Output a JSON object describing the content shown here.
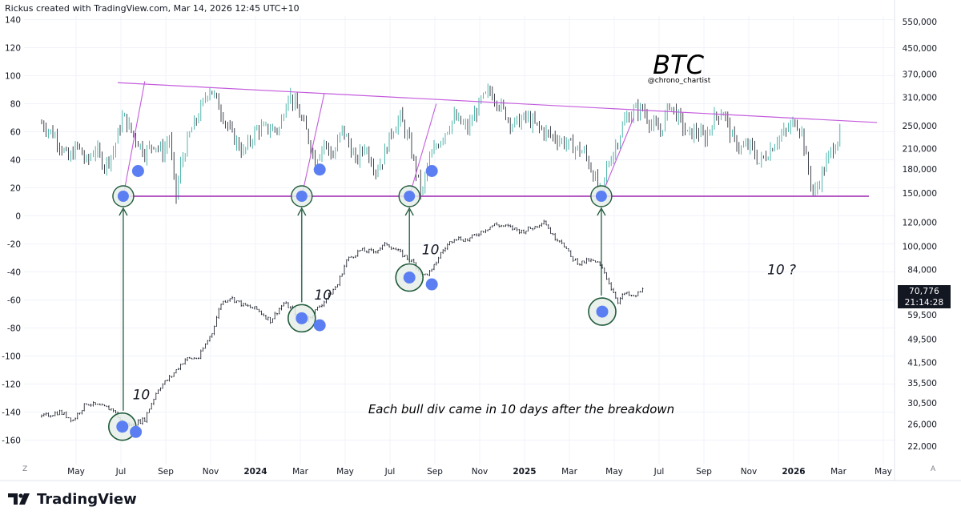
{
  "header": {
    "attribution": "Rickus created with TradingView.com, Mar 14, 2026 12:45 UTC+10"
  },
  "brand": {
    "name": "TradingView",
    "logo_icon": "tradingview-logo-icon"
  },
  "colors": {
    "bg": "#ffffff",
    "grid": "#f0f3fa",
    "candle_up": "#26a69a",
    "candle_down": "#131722",
    "trendline": "#c45cdc",
    "support": "#9c27b0",
    "marker": "#5b7ff2",
    "arrow": "#1f5a3a"
  },
  "price_tag": {
    "price": "70,776",
    "countdown": "21:14:28"
  },
  "corner_labels": {
    "left": "Z",
    "right": "A"
  },
  "chart_data": [
    {
      "type": "line",
      "name": "oscillator",
      "title": "BTC",
      "subtitle": "@chrono_chartist",
      "yaxis_side": "left",
      "yticks": [
        140,
        120,
        100,
        80,
        60,
        40,
        20,
        0,
        -20,
        -40,
        -60,
        -80,
        -100,
        -120,
        -140,
        -160
      ],
      "key_points": [
        {
          "t": 0,
          "v": 66
        },
        {
          "t": 3,
          "v": 57
        },
        {
          "t": 6,
          "v": 40
        },
        {
          "t": 8,
          "v": 50
        },
        {
          "t": 10,
          "v": 38
        },
        {
          "t": 12,
          "v": 48
        },
        {
          "t": 14,
          "v": 36
        },
        {
          "t": 16,
          "v": 46
        },
        {
          "t": 18.2,
          "v": 72
        },
        {
          "t": 19,
          "v": 66
        },
        {
          "t": 21,
          "v": 55
        },
        {
          "t": 23,
          "v": 45
        },
        {
          "t": 25,
          "v": 52
        },
        {
          "t": 27,
          "v": 45
        },
        {
          "t": 28.5,
          "v": 56
        },
        {
          "t": 29.3,
          "v": 30
        },
        {
          "t": 30,
          "v": 14
        },
        {
          "t": 31,
          "v": 36
        },
        {
          "t": 33,
          "v": 58
        },
        {
          "t": 35,
          "v": 72
        },
        {
          "t": 37.4,
          "v": 92
        },
        {
          "t": 39,
          "v": 82
        },
        {
          "t": 42,
          "v": 60
        },
        {
          "t": 45,
          "v": 45
        },
        {
          "t": 48,
          "v": 62
        },
        {
          "t": 50,
          "v": 62
        },
        {
          "t": 53,
          "v": 62
        },
        {
          "t": 55,
          "v": 88
        },
        {
          "t": 57,
          "v": 76
        },
        {
          "t": 59,
          "v": 60
        },
        {
          "t": 61,
          "v": 40
        },
        {
          "t": 63,
          "v": 52
        },
        {
          "t": 65,
          "v": 42
        },
        {
          "t": 67,
          "v": 62
        },
        {
          "t": 69,
          "v": 48
        },
        {
          "t": 70,
          "v": 38
        },
        {
          "t": 72,
          "v": 50
        },
        {
          "t": 74.5,
          "v": 33
        },
        {
          "t": 76,
          "v": 40
        },
        {
          "t": 78,
          "v": 60
        },
        {
          "t": 80,
          "v": 70
        },
        {
          "t": 82,
          "v": 52
        },
        {
          "t": 84.8,
          "v": 14
        },
        {
          "t": 86,
          "v": 36
        },
        {
          "t": 88,
          "v": 50
        },
        {
          "t": 90,
          "v": 60
        },
        {
          "t": 92,
          "v": 70
        },
        {
          "t": 95,
          "v": 62
        },
        {
          "t": 98,
          "v": 82
        },
        {
          "t": 100,
          "v": 89
        },
        {
          "t": 102,
          "v": 80
        },
        {
          "t": 105,
          "v": 65
        },
        {
          "t": 108,
          "v": 70
        },
        {
          "t": 112,
          "v": 60
        },
        {
          "t": 115,
          "v": 55
        },
        {
          "t": 118,
          "v": 50
        },
        {
          "t": 121,
          "v": 45
        },
        {
          "t": 123,
          "v": 30
        },
        {
          "t": 124.8,
          "v": 14
        },
        {
          "t": 126,
          "v": 34
        },
        {
          "t": 128,
          "v": 50
        },
        {
          "t": 130,
          "v": 68
        },
        {
          "t": 132,
          "v": 75
        },
        {
          "t": 134,
          "v": 76
        },
        {
          "t": 136,
          "v": 65
        },
        {
          "t": 138,
          "v": 60
        },
        {
          "t": 140,
          "v": 80
        },
        {
          "t": 142,
          "v": 70
        },
        {
          "t": 144,
          "v": 58
        },
        {
          "t": 146,
          "v": 60
        },
        {
          "t": 148,
          "v": 55
        },
        {
          "t": 150,
          "v": 70
        },
        {
          "t": 152,
          "v": 75
        },
        {
          "t": 154,
          "v": 55
        },
        {
          "t": 156,
          "v": 48
        },
        {
          "t": 158,
          "v": 50
        },
        {
          "t": 160,
          "v": 38
        },
        {
          "t": 162,
          "v": 45
        },
        {
          "t": 164,
          "v": 55
        },
        {
          "t": 166,
          "v": 60
        },
        {
          "t": 168,
          "v": 68
        },
        {
          "t": 169.5,
          "v": 60
        },
        {
          "t": 170.5,
          "v": 40
        },
        {
          "t": 172.2,
          "v": 14
        },
        {
          "t": 174,
          "v": 30
        },
        {
          "t": 176,
          "v": 46
        },
        {
          "t": 178,
          "v": 58
        }
      ]
    },
    {
      "type": "line",
      "name": "BTC price",
      "yaxis_side": "right",
      "yscale": "log",
      "yticks": [
        550000,
        450000,
        370000,
        310000,
        250000,
        210000,
        180000,
        150000,
        120000,
        100000,
        84000,
        70776,
        59500,
        49500,
        41500,
        35500,
        30500,
        26000,
        22000
      ],
      "xlabels": [
        "May",
        "Jul",
        "Sep",
        "Nov",
        "2024",
        "Mar",
        "May",
        "Jul",
        "Sep",
        "Nov",
        "2025",
        "Mar",
        "May",
        "Jul",
        "Sep",
        "Nov",
        "2026",
        "Mar",
        "May"
      ],
      "key_points": [
        {
          "t": 0,
          "p": 27500
        },
        {
          "t": 4,
          "p": 28500
        },
        {
          "t": 7,
          "p": 26800
        },
        {
          "t": 10,
          "p": 30500
        },
        {
          "t": 14,
          "p": 29500
        },
        {
          "t": 16,
          "p": 29000
        },
        {
          "t": 18,
          "p": 26000
        },
        {
          "t": 20,
          "p": 25800
        },
        {
          "t": 23,
          "p": 27000
        },
        {
          "t": 26,
          "p": 34000
        },
        {
          "t": 29,
          "p": 37500
        },
        {
          "t": 32,
          "p": 42500
        },
        {
          "t": 35,
          "p": 43000
        },
        {
          "t": 38,
          "p": 52000
        },
        {
          "t": 40,
          "p": 65000
        },
        {
          "t": 42,
          "p": 68000
        },
        {
          "t": 45,
          "p": 64000
        },
        {
          "t": 48,
          "p": 62000
        },
        {
          "t": 51,
          "p": 57000
        },
        {
          "t": 54,
          "p": 65000
        },
        {
          "t": 56,
          "p": 62000
        },
        {
          "t": 58,
          "p": 56000
        },
        {
          "t": 60,
          "p": 59000
        },
        {
          "t": 63,
          "p": 66000
        },
        {
          "t": 66,
          "p": 75000
        },
        {
          "t": 68,
          "p": 90000
        },
        {
          "t": 71,
          "p": 97000
        },
        {
          "t": 74,
          "p": 96000
        },
        {
          "t": 77,
          "p": 102000
        },
        {
          "t": 80,
          "p": 95000
        },
        {
          "t": 83,
          "p": 88000
        },
        {
          "t": 85,
          "p": 80000
        },
        {
          "t": 87,
          "p": 83000
        },
        {
          "t": 89,
          "p": 95000
        },
        {
          "t": 92,
          "p": 107000
        },
        {
          "t": 95,
          "p": 105000
        },
        {
          "t": 98,
          "p": 112000
        },
        {
          "t": 101,
          "p": 118000
        },
        {
          "t": 104,
          "p": 116000
        },
        {
          "t": 107,
          "p": 112000
        },
        {
          "t": 110,
          "p": 116000
        },
        {
          "t": 112,
          "p": 122000
        },
        {
          "t": 114,
          "p": 108000
        },
        {
          "t": 116,
          "p": 104000
        },
        {
          "t": 118,
          "p": 92000
        },
        {
          "t": 120,
          "p": 88000
        },
        {
          "t": 122,
          "p": 90000
        },
        {
          "t": 124,
          "p": 88000
        },
        {
          "t": 125.5,
          "p": 82000
        },
        {
          "t": 127,
          "p": 73000
        },
        {
          "t": 128.5,
          "p": 66000
        },
        {
          "t": 130,
          "p": 70000
        },
        {
          "t": 132,
          "p": 68000
        },
        {
          "t": 134,
          "p": 72000
        }
      ]
    }
  ],
  "annotations": {
    "title": "BTC",
    "handle": "@chrono_chartist",
    "caption": "Each bull div came in 10 days after the breakdown",
    "labels": [
      {
        "text": "10",
        "t": 18.5,
        "p": 31000
      },
      {
        "text": "10",
        "t": 59,
        "p": 66000
      },
      {
        "text": "10",
        "t": 83,
        "p": 93000
      },
      {
        "text": "10 ?",
        "t": 160,
        "p": 80000
      }
    ],
    "support_level": 14,
    "resistance_line": [
      {
        "t": 11,
        "v": 96
      },
      {
        "t": 166,
        "v": 70
      }
    ],
    "oscillator_circles": [
      {
        "t": 18.2,
        "v": 14
      },
      {
        "t": 58,
        "v": 14
      },
      {
        "t": 82,
        "v": 14
      },
      {
        "t": 124.8,
        "v": 14
      }
    ],
    "oscillator_dots": [
      {
        "t": 21.5,
        "v": 32
      },
      {
        "t": 62,
        "v": 33
      },
      {
        "t": 87,
        "v": 32
      }
    ],
    "price_circles": [
      {
        "t": 18,
        "p": 25500
      },
      {
        "t": 58,
        "p": 58000
      },
      {
        "t": 82,
        "p": 79000
      },
      {
        "t": 125,
        "p": 61000
      }
    ],
    "price_dots": [
      {
        "t": 21,
        "p": 24500
      },
      {
        "t": 62,
        "p": 55000
      },
      {
        "t": 87,
        "p": 75000
      }
    ],
    "oscillator_spikes": [
      {
        "from": {
          "t": 18.2,
          "v": 14
        },
        "to": {
          "t": 23,
          "v": 96
        }
      },
      {
        "from": {
          "t": 58,
          "v": 14
        },
        "to": {
          "t": 63,
          "v": 87
        }
      },
      {
        "from": {
          "t": 82,
          "v": 14
        },
        "to": {
          "t": 88,
          "v": 80
        }
      },
      {
        "from": {
          "t": 124.8,
          "v": 14
        },
        "to": {
          "t": 132,
          "v": 70
        }
      }
    ]
  }
}
